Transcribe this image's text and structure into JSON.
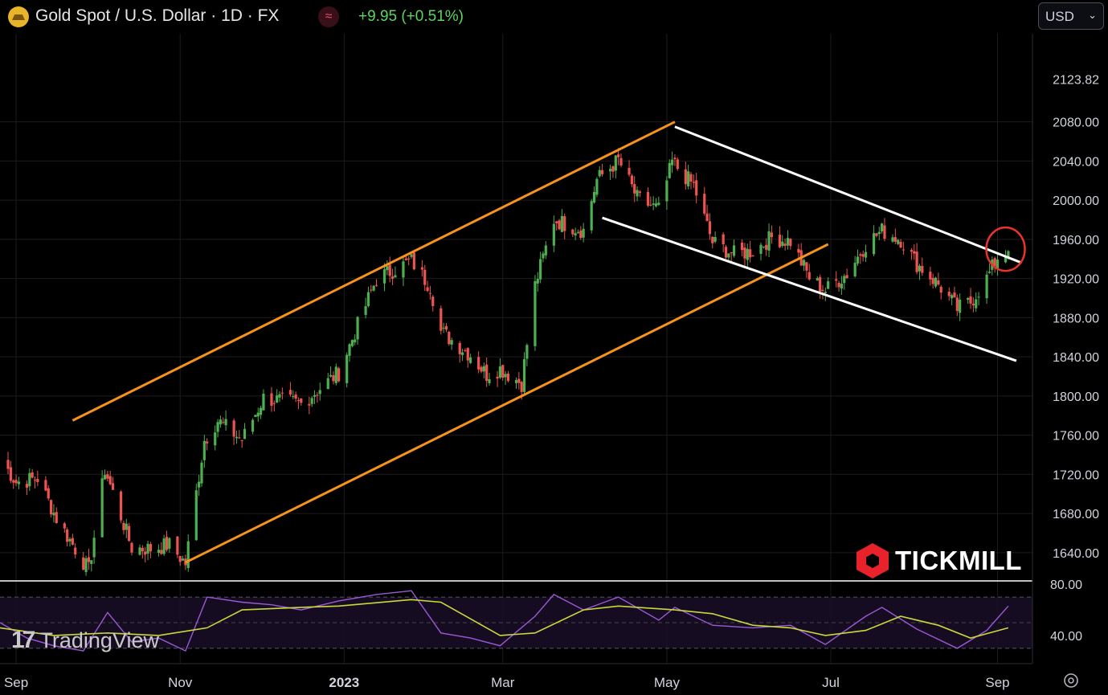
{
  "header": {
    "symbol_icon": "gold-coin-icon",
    "title": "Gold Spot / U.S. Dollar · 1D · FX",
    "indicator_icon": "wave-icon",
    "change": "+9.95 (+0.51%)",
    "currency": "USD",
    "currency_icon": "chevron-down-icon"
  },
  "watermarks": {
    "tradingview": "TradingView",
    "tickmill": "TICKMILL"
  },
  "colors": {
    "up": "#4caf50",
    "down": "#ef5350",
    "orange_channel": "#f7931a",
    "white_channel": "#ffffff",
    "rsi": "#9b59d6",
    "rsi_ma": "#c8d93a",
    "circle": "#e8342a",
    "grid": "#1c1c1c"
  },
  "chart_data": [
    {
      "type": "candlestick",
      "title": "Gold Spot / U.S. Dollar · 1D · FX",
      "x_labels": [
        "Sep",
        "Nov",
        "2023",
        "Mar",
        "May",
        "Jul",
        "Sep"
      ],
      "x_label_dates": [
        "2022-09-01",
        "2022-11-01",
        "2023-01-01",
        "2023-03-01",
        "2023-05-01",
        "2023-07-01",
        "2023-09-01"
      ],
      "x_range": [
        "2022-08-26",
        "2023-09-14"
      ],
      "y_ticks": [
        1640,
        1680,
        1720,
        1760,
        1800,
        1840,
        1880,
        1920,
        1960,
        2000,
        2040,
        2080
      ],
      "last_price": 2123.82,
      "ylim": [
        1612,
        2170
      ],
      "grid": true,
      "series": [
        {
          "values": [
            [
              "2022-08-26",
              1737
            ],
            [
              "2022-09-01",
              1712
            ],
            [
              "2022-09-09",
              1716
            ],
            [
              "2022-09-16",
              1675
            ],
            [
              "2022-09-23",
              1644
            ],
            [
              "2022-09-28",
              1622
            ],
            [
              "2022-10-04",
              1725
            ],
            [
              "2022-10-14",
              1645
            ],
            [
              "2022-10-21",
              1644
            ],
            [
              "2022-10-28",
              1648
            ],
            [
              "2022-11-03",
              1629
            ],
            [
              "2022-11-10",
              1755
            ],
            [
              "2022-11-15",
              1775
            ],
            [
              "2022-11-24",
              1755
            ],
            [
              "2022-12-02",
              1798
            ],
            [
              "2022-12-16",
              1792
            ],
            [
              "2022-12-30",
              1824
            ],
            [
              "2023-01-13",
              1920
            ],
            [
              "2023-01-26",
              1938
            ],
            [
              "2023-02-02",
              1912
            ],
            [
              "2023-02-06",
              1866
            ],
            [
              "2023-02-17",
              1842
            ],
            [
              "2023-02-23",
              1822
            ],
            [
              "2023-02-28",
              1828
            ],
            [
              "2023-03-08",
              1813
            ],
            [
              "2023-03-13",
              1913
            ],
            [
              "2023-03-20",
              1980
            ],
            [
              "2023-03-31",
              1969
            ],
            [
              "2023-04-05",
              2021
            ],
            [
              "2023-04-13",
              2041
            ],
            [
              "2023-04-20",
              2002
            ],
            [
              "2023-04-28",
              1990
            ],
            [
              "2023-05-03",
              2039
            ],
            [
              "2023-05-11",
              2015
            ],
            [
              "2023-05-18",
              1957
            ],
            [
              "2023-05-26",
              1945
            ],
            [
              "2023-06-02",
              1948
            ],
            [
              "2023-06-09",
              1962
            ],
            [
              "2023-06-16",
              1958
            ],
            [
              "2023-06-23",
              1921
            ],
            [
              "2023-06-29",
              1908
            ],
            [
              "2023-07-07",
              1925
            ],
            [
              "2023-07-14",
              1955
            ],
            [
              "2023-07-20",
              1969
            ],
            [
              "2023-07-27",
              1960
            ],
            [
              "2023-08-02",
              1935
            ],
            [
              "2023-08-10",
              1914
            ],
            [
              "2023-08-17",
              1889
            ],
            [
              "2023-08-22",
              1896
            ],
            [
              "2023-08-28",
              1920
            ],
            [
              "2023-09-01",
              1942
            ],
            [
              "2023-09-05",
              1948
            ]
          ]
        }
      ],
      "trendlines": [
        {
          "color": "orange",
          "from": [
            "2022-09-22",
            1775
          ],
          "to": [
            "2023-05-04",
            2080
          ]
        },
        {
          "color": "orange",
          "from": [
            "2022-11-03",
            1630
          ],
          "to": [
            "2023-06-30",
            1955
          ]
        },
        {
          "color": "white",
          "from": [
            "2023-05-04",
            2075
          ],
          "to": [
            "2023-09-10",
            1936
          ]
        },
        {
          "color": "white",
          "from": [
            "2023-04-07",
            1982
          ],
          "to": [
            "2023-09-08",
            1836
          ]
        }
      ],
      "highlight_circle": {
        "x": "2023-09-04",
        "y": 1950
      }
    },
    {
      "type": "line",
      "name": "RSI",
      "ylim": [
        18,
        82
      ],
      "y_ticks": [
        80,
        40
      ],
      "bands": [
        70,
        30
      ],
      "series": [
        {
          "name": "",
          "values": [
            [
              "2022-08-26",
              50
            ],
            [
              "2022-09-05",
              38
            ],
            [
              "2022-09-15",
              32
            ],
            [
              "2022-09-26",
              28
            ],
            [
              "2022-10-05",
              58
            ],
            [
              "2022-10-14",
              35
            ],
            [
              "2022-10-24",
              38
            ],
            [
              "2022-11-03",
              28
            ],
            [
              "2022-11-11",
              70
            ],
            [
              "2022-11-24",
              66
            ],
            [
              "2022-12-05",
              64
            ],
            [
              "2022-12-16",
              60
            ],
            [
              "2022-12-30",
              67
            ],
            [
              "2023-01-13",
              72
            ],
            [
              "2023-01-26",
              75
            ],
            [
              "2023-02-06",
              42
            ],
            [
              "2023-02-17",
              38
            ],
            [
              "2023-02-28",
              32
            ],
            [
              "2023-03-13",
              55
            ],
            [
              "2023-03-20",
              72
            ],
            [
              "2023-03-31",
              60
            ],
            [
              "2023-04-13",
              70
            ],
            [
              "2023-04-28",
              52
            ],
            [
              "2023-05-04",
              62
            ],
            [
              "2023-05-18",
              48
            ],
            [
              "2023-06-02",
              46
            ],
            [
              "2023-06-16",
              48
            ],
            [
              "2023-06-29",
              33
            ],
            [
              "2023-07-14",
              55
            ],
            [
              "2023-07-20",
              62
            ],
            [
              "2023-08-02",
              45
            ],
            [
              "2023-08-17",
              30
            ],
            [
              "2023-08-28",
              44
            ],
            [
              "2023-09-05",
              63
            ]
          ]
        },
        {
          "name": "",
          "values": [
            [
              "2022-08-26",
              46
            ],
            [
              "2022-09-15",
              40
            ],
            [
              "2022-10-05",
              42
            ],
            [
              "2022-10-24",
              40
            ],
            [
              "2022-11-11",
              46
            ],
            [
              "2022-11-24",
              60
            ],
            [
              "2022-12-16",
              62
            ],
            [
              "2022-12-30",
              63
            ],
            [
              "2023-01-26",
              68
            ],
            [
              "2023-02-06",
              66
            ],
            [
              "2023-02-28",
              40
            ],
            [
              "2023-03-13",
              42
            ],
            [
              "2023-03-31",
              60
            ],
            [
              "2023-04-13",
              63
            ],
            [
              "2023-05-04",
              60
            ],
            [
              "2023-05-18",
              57
            ],
            [
              "2023-06-02",
              48
            ],
            [
              "2023-06-16",
              46
            ],
            [
              "2023-06-29",
              40
            ],
            [
              "2023-07-14",
              44
            ],
            [
              "2023-07-27",
              55
            ],
            [
              "2023-08-10",
              48
            ],
            [
              "2023-08-22",
              38
            ],
            [
              "2023-09-05",
              46
            ]
          ]
        }
      ]
    }
  ]
}
